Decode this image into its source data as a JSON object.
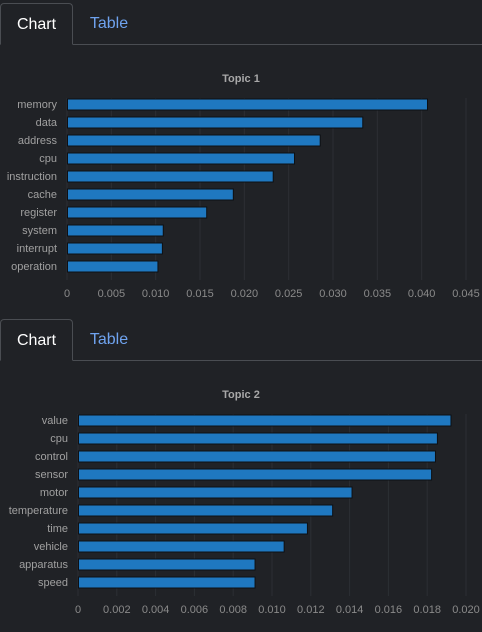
{
  "tabs": {
    "chart_label": "Chart",
    "table_label": "Table"
  },
  "chart_data": [
    {
      "type": "bar",
      "orientation": "horizontal",
      "title": "Topic 1",
      "categories": [
        "memory",
        "data",
        "address",
        "cpu",
        "instruction",
        "cache",
        "register",
        "system",
        "interrupt",
        "operation"
      ],
      "values": [
        0.0406,
        0.0333,
        0.0285,
        0.0256,
        0.0232,
        0.0187,
        0.0157,
        0.0108,
        0.0107,
        0.0102
      ],
      "xlim": [
        0,
        0.045
      ],
      "xticks": [
        "0",
        "0.005",
        "0.010",
        "0.015",
        "0.020",
        "0.025",
        "0.030",
        "0.035",
        "0.040",
        "0.045"
      ],
      "grid": true,
      "colors": {
        "bar": "#1f78c0"
      }
    },
    {
      "type": "bar",
      "orientation": "horizontal",
      "title": "Topic 2",
      "categories": [
        "value",
        "cpu",
        "control",
        "sensor",
        "motor",
        "temperature",
        "time",
        "vehicle",
        "apparatus",
        "speed"
      ],
      "values": [
        0.0192,
        0.0185,
        0.0184,
        0.0182,
        0.0141,
        0.0131,
        0.0118,
        0.0106,
        0.0091,
        0.0091
      ],
      "xlim": [
        0,
        0.02
      ],
      "xticks": [
        "0",
        "0.002",
        "0.004",
        "0.006",
        "0.008",
        "0.010",
        "0.012",
        "0.014",
        "0.016",
        "0.018",
        "0.020"
      ],
      "grid": true,
      "colors": {
        "bar": "#1f78c0"
      }
    }
  ]
}
